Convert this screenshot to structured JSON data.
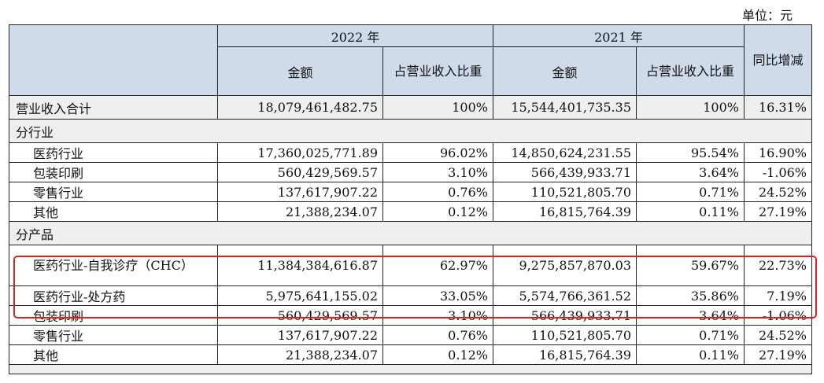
{
  "unit_label": "单位：元",
  "headers": {
    "year_2022": "2022 年",
    "year_2021": "2021 年",
    "amount": "金额",
    "share": "占营业收入比重",
    "yoy": "同比增减"
  },
  "total": {
    "label": "营业收入合计",
    "amount_2022": "18,079,461,482.75",
    "share_2022": "100%",
    "amount_2021": "15,544,401,735.35",
    "share_2021": "100%",
    "yoy": "16.31%"
  },
  "sections": [
    {
      "title": "分行业",
      "rows": [
        {
          "label": "医药行业",
          "amount_2022": "17,360,025,771.89",
          "share_2022": "96.02%",
          "amount_2021": "14,850,624,231.55",
          "share_2021": "95.54%",
          "yoy": "16.90%"
        },
        {
          "label": "包装印刷",
          "amount_2022": "560,429,569.57",
          "share_2022": "3.10%",
          "amount_2021": "566,439,933.71",
          "share_2021": "3.64%",
          "yoy": "-1.06%"
        },
        {
          "label": "零售行业",
          "amount_2022": "137,617,907.22",
          "share_2022": "0.76%",
          "amount_2021": "110,521,805.70",
          "share_2021": "0.71%",
          "yoy": "24.52%"
        },
        {
          "label": "其他",
          "amount_2022": "21,388,234.07",
          "share_2022": "0.12%",
          "amount_2021": "16,815,764.39",
          "share_2021": "0.11%",
          "yoy": "27.19%"
        }
      ]
    },
    {
      "title": "分产品",
      "rows": [
        {
          "label": "医药行业-自我诊疗（CHC）",
          "amount_2022": "11,384,384,616.87",
          "share_2022": "62.97%",
          "amount_2021": "9,275,857,870.03",
          "share_2021": "59.67%",
          "yoy": "22.73%"
        },
        {
          "label": "医药行业-处方药",
          "amount_2022": "5,975,641,155.02",
          "share_2022": "33.05%",
          "amount_2021": "5,574,766,361.52",
          "share_2021": "35.86%",
          "yoy": "7.19%"
        },
        {
          "label": "包装印刷",
          "amount_2022": "560,429,569.57",
          "share_2022": "3.10%",
          "amount_2021": "566,439,933.71",
          "share_2021": "3.64%",
          "yoy": "-1.06%"
        },
        {
          "label": "零售行业",
          "amount_2022": "137,617,907.22",
          "share_2022": "0.76%",
          "amount_2021": "110,521,805.70",
          "share_2021": "0.71%",
          "yoy": "24.52%"
        },
        {
          "label": "其他",
          "amount_2022": "21,388,234.07",
          "share_2022": "0.12%",
          "amount_2021": "16,815,764.39",
          "share_2021": "0.11%",
          "yoy": "27.19%"
        }
      ]
    }
  ],
  "highlight_color": "#e0201e"
}
